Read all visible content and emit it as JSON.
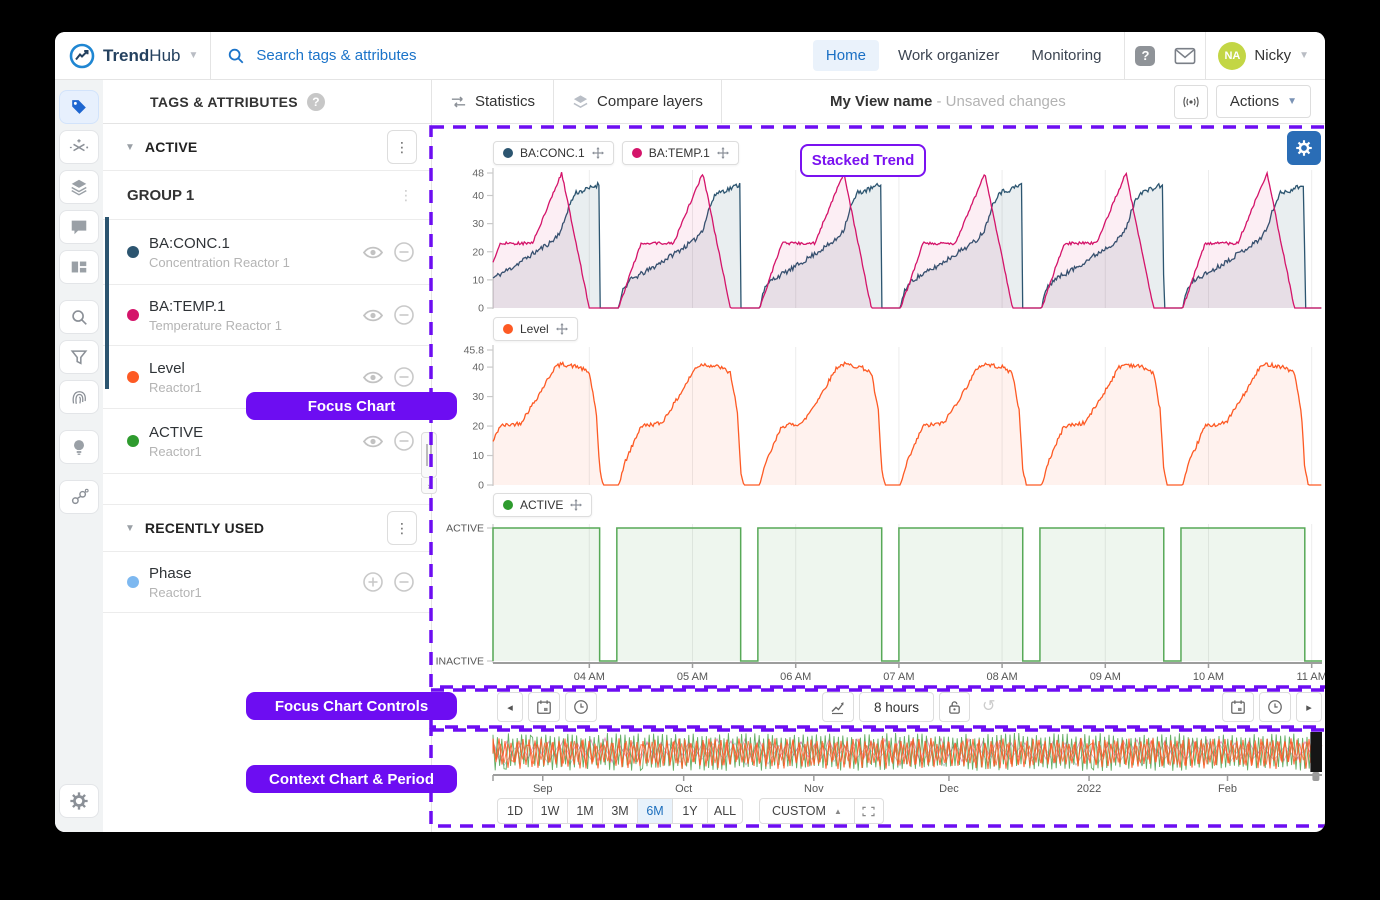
{
  "navbar": {
    "brand_bold": "Trend",
    "brand_light": "Hub",
    "search_placeholder": "Search tags & attributes",
    "nav_items": [
      "Home",
      "Work organizer",
      "Monitoring"
    ],
    "active_nav": "Home",
    "user_initials": "NA",
    "user_name": "Nicky"
  },
  "rail_icons": [
    "tags",
    "calculations",
    "layers",
    "comments",
    "dashboard",
    "search",
    "filter",
    "fingerprint",
    "recommendations",
    "context-items",
    "settings"
  ],
  "toolbar": {
    "panel_title": "TAGS & ATTRIBUTES",
    "statistics_label": "Statistics",
    "compare_label": "Compare layers",
    "view_name": "My View name",
    "view_status": "- Unsaved changes",
    "actions_label": "Actions"
  },
  "tags_panel": {
    "active_section_title": "ACTIVE",
    "group": {
      "name": "GROUP 1",
      "items": [
        {
          "name": "BA:CONC.1",
          "desc": "Concentration Reactor 1",
          "color": "#2c5570"
        },
        {
          "name": "BA:TEMP.1",
          "desc": "Temperature Reactor 1",
          "color": "#d4146a"
        }
      ]
    },
    "loose_items": [
      {
        "name": "Level",
        "desc": "Reactor1",
        "color": "#fd5a24"
      },
      {
        "name": "ACTIVE",
        "desc": "Reactor1",
        "color": "#2e9b2e"
      }
    ],
    "recent_section_title": "RECENTLY USED",
    "recent_items": [
      {
        "name": "Phase",
        "desc": "Reactor1",
        "color": "#7db8f0"
      }
    ]
  },
  "annotations": {
    "stacked_trend": "Stacked Trend",
    "focus_chart": "Focus Chart",
    "focus_controls": "Focus Chart Controls",
    "context_chart": "Context Chart & Period",
    "accent": "#6d0df2"
  },
  "focus_controls": {
    "duration_label": "8 hours"
  },
  "period": {
    "options": [
      "1D",
      "1W",
      "1M",
      "3M",
      "6M",
      "1Y",
      "ALL"
    ],
    "active": "6M",
    "custom_label": "CUSTOM"
  },
  "chart_data": [
    {
      "id": "stacked-pane-concentration-temperature",
      "type": "line",
      "span_min": 482,
      "period_min": 82,
      "dip_start_min": 62,
      "ylim": [
        0,
        48
      ],
      "yticks": [
        48,
        40,
        30,
        20,
        10,
        0
      ],
      "x_ticks": [
        {
          "m": 56,
          "label": "04 AM"
        },
        {
          "m": 116,
          "label": "05 AM"
        },
        {
          "m": 176,
          "label": "06 AM"
        },
        {
          "m": 236,
          "label": "07 AM"
        },
        {
          "m": 296,
          "label": "08 AM"
        },
        {
          "m": 356,
          "label": "09 AM"
        },
        {
          "m": 416,
          "label": "10 AM"
        },
        {
          "m": 476,
          "label": "11 AM"
        }
      ],
      "series": [
        {
          "name": "BA:CONC.1",
          "color": "#2c5570",
          "fill": "rgba(44,85,112,0.10)",
          "noise": 0.9,
          "keypoints_cycle": [
            [
              0,
              0
            ],
            [
              11,
              0
            ],
            [
              13,
              6
            ],
            [
              18,
              10
            ],
            [
              30,
              14
            ],
            [
              45,
              20
            ],
            [
              55,
              24
            ],
            [
              60,
              28
            ],
            [
              64,
              36
            ],
            [
              68,
              41
            ],
            [
              74,
              42
            ],
            [
              81.6,
              44
            ],
            [
              82,
              0
            ]
          ]
        },
        {
          "name": "BA:TEMP.1",
          "color": "#d4146a",
          "fill": "rgba(212,20,106,0.07)",
          "noise": 0.5,
          "keypoints_cycle": [
            [
              0,
              0
            ],
            [
              11,
              0
            ],
            [
              24,
              23
            ],
            [
              43,
              23
            ],
            [
              60,
              48
            ],
            [
              76,
              0
            ],
            [
              82,
              0
            ]
          ]
        }
      ]
    },
    {
      "id": "stacked-pane-level",
      "type": "line",
      "span_min": 482,
      "period_min": 82,
      "dip_start_min": 62,
      "ylim": [
        0,
        45.8
      ],
      "yticks": [
        45.8,
        40,
        30,
        20,
        10,
        0
      ],
      "series": [
        {
          "name": "Level",
          "color": "#fd5a24",
          "fill": "rgba(253,90,36,0.08)",
          "noise": 0.7,
          "keypoints_cycle": [
            [
              0,
              5
            ],
            [
              2,
              0
            ],
            [
              11,
              0
            ],
            [
              15,
              8
            ],
            [
              24,
              20
            ],
            [
              36,
              21
            ],
            [
              46,
              30
            ],
            [
              56,
              40
            ],
            [
              60,
              41
            ],
            [
              70,
              40
            ],
            [
              76,
              38
            ],
            [
              80,
              25
            ],
            [
              82,
              5
            ]
          ]
        }
      ]
    },
    {
      "id": "stacked-pane-active",
      "type": "digital",
      "span_min": 482,
      "period_min": 82,
      "dip_start_min": 62,
      "dip_duration_min": 10,
      "categories": [
        "ACTIVE",
        "INACTIVE"
      ],
      "x_ticks": [
        {
          "m": 56,
          "label": "04 AM"
        },
        {
          "m": 116,
          "label": "05 AM"
        },
        {
          "m": 176,
          "label": "06 AM"
        },
        {
          "m": 236,
          "label": "07 AM"
        },
        {
          "m": 296,
          "label": "08 AM"
        },
        {
          "m": 356,
          "label": "09 AM"
        },
        {
          "m": 416,
          "label": "10 AM"
        },
        {
          "m": 476,
          "label": "11 AM"
        }
      ],
      "series": [
        {
          "name": "ACTIVE",
          "color": "#57a957",
          "fill": "rgba(87,169,87,0.10)",
          "dot_color": "#2e9b2e"
        }
      ]
    },
    {
      "id": "context-overview",
      "type": "overview",
      "x_ticks": [
        {
          "f": 0.06,
          "label": "Sep"
        },
        {
          "f": 0.23,
          "label": "Oct"
        },
        {
          "f": 0.387,
          "label": "Nov"
        },
        {
          "f": 0.55,
          "label": "Dec"
        },
        {
          "f": 0.719,
          "label": "2022"
        },
        {
          "f": 0.886,
          "label": "Feb"
        }
      ],
      "selector": {
        "from": 0.986,
        "to": 1.0
      },
      "colors": [
        "#49a049",
        "#fd5a24",
        "#d4146a",
        "#2c5570"
      ]
    }
  ]
}
